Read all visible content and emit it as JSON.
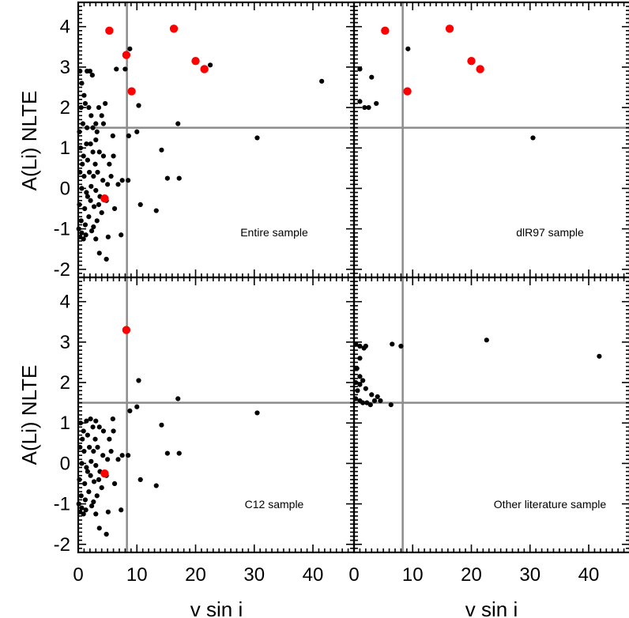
{
  "figure": {
    "ylabel": "A(Li) NLTE",
    "xlabel": "v sin i",
    "xlim": [
      0,
      47
    ],
    "ylim": [
      -2.2,
      4.6
    ],
    "x_ticks": [
      0,
      10,
      20,
      30,
      40
    ],
    "y_ticks": [
      -2,
      -1,
      0,
      1,
      2,
      3,
      4
    ],
    "reference_lines": {
      "vsini": 8.3,
      "ali": 1.5
    },
    "colors": {
      "black_points": "#000000",
      "red_points": "#ff0000",
      "reference_lines": "#8c8c8c"
    }
  },
  "chart_data": [
    {
      "type": "scatter",
      "panel": "top-left",
      "label": "Entire sample",
      "black": [
        [
          0.3,
          2.9
        ],
        [
          0.6,
          2.6
        ],
        [
          1.0,
          2.3
        ],
        [
          1.8,
          2.0
        ],
        [
          0.5,
          2.0
        ],
        [
          1.2,
          2.1
        ],
        [
          2.2,
          1.8
        ],
        [
          0.8,
          1.6
        ],
        [
          1.5,
          1.5
        ],
        [
          2.5,
          1.5
        ],
        [
          3.0,
          1.6
        ],
        [
          0.2,
          1.4
        ],
        [
          3.2,
          1.4
        ],
        [
          4.0,
          1.8
        ],
        [
          4.3,
          1.6
        ],
        [
          4.6,
          2.1
        ],
        [
          3.5,
          2.0
        ],
        [
          2.0,
          2.9
        ],
        [
          2.4,
          2.8
        ],
        [
          1.5,
          2.9
        ],
        [
          6.5,
          2.95
        ],
        [
          8.0,
          2.95
        ],
        [
          8.8,
          3.45
        ],
        [
          8.6,
          1.3
        ],
        [
          10.3,
          2.05
        ],
        [
          10.0,
          1.4
        ],
        [
          17.0,
          1.6
        ],
        [
          22.5,
          3.05
        ],
        [
          41.5,
          2.65
        ],
        [
          14.2,
          0.95
        ],
        [
          30.5,
          1.25
        ],
        [
          15.2,
          0.25
        ],
        [
          17.2,
          0.25
        ],
        [
          8.5,
          0.2
        ],
        [
          10.6,
          -0.4
        ],
        [
          13.3,
          -0.55
        ],
        [
          7.3,
          -1.15
        ],
        [
          5.9,
          1.3
        ],
        [
          6.0,
          0.8
        ],
        [
          5.3,
          0.6
        ],
        [
          3.0,
          1.2
        ],
        [
          2.1,
          1.1
        ],
        [
          1.4,
          1.1
        ],
        [
          0.4,
          1.0
        ],
        [
          0.9,
          0.8
        ],
        [
          1.6,
          0.7
        ],
        [
          2.5,
          0.9
        ],
        [
          3.6,
          0.9
        ],
        [
          4.3,
          0.8
        ],
        [
          0.3,
          0.4
        ],
        [
          1.0,
          0.3
        ],
        [
          1.9,
          0.4
        ],
        [
          2.6,
          0.3
        ],
        [
          3.3,
          0.4
        ],
        [
          4.2,
          0.2
        ],
        [
          5.0,
          0.1
        ],
        [
          6.8,
          0.1
        ],
        [
          7.5,
          0.2
        ],
        [
          0.6,
          0.0
        ],
        [
          1.4,
          -0.1
        ],
        [
          2.2,
          0.05
        ],
        [
          3.0,
          -0.05
        ],
        [
          3.7,
          -0.2
        ],
        [
          4.8,
          -0.3
        ],
        [
          6.2,
          -0.5
        ],
        [
          0.2,
          -0.4
        ],
        [
          1.1,
          -0.5
        ],
        [
          2.1,
          -0.3
        ],
        [
          2.7,
          -0.45
        ],
        [
          3.5,
          -0.4
        ],
        [
          4.0,
          -0.6
        ],
        [
          0.5,
          -0.8
        ],
        [
          1.2,
          -0.9
        ],
        [
          1.8,
          -0.7
        ],
        [
          2.6,
          -0.95
        ],
        [
          3.2,
          -0.8
        ],
        [
          0.1,
          -1.0
        ],
        [
          0.6,
          -1.1
        ],
        [
          1.3,
          -1.15
        ],
        [
          2.3,
          -1.05
        ],
        [
          3.0,
          -1.25
        ],
        [
          0.3,
          -1.2
        ],
        [
          0.9,
          -1.25
        ],
        [
          3.6,
          -1.6
        ],
        [
          4.8,
          -1.75
        ],
        [
          5.1,
          -1.2
        ],
        [
          1.6,
          -0.2
        ],
        [
          5.6,
          0.3
        ],
        [
          2.9,
          0.6
        ],
        [
          0.7,
          0.6
        ]
      ],
      "red": [
        [
          5.3,
          3.9
        ],
        [
          8.2,
          3.3
        ],
        [
          9.1,
          2.4
        ],
        [
          16.3,
          3.95
        ],
        [
          20.0,
          3.15
        ],
        [
          21.5,
          2.95
        ],
        [
          4.5,
          -0.25
        ]
      ]
    },
    {
      "type": "scatter",
      "panel": "top-right",
      "label": "dlR97 sample",
      "black": [
        [
          1.0,
          2.95
        ],
        [
          3.0,
          2.75
        ],
        [
          1.0,
          2.15
        ],
        [
          1.8,
          2.0
        ],
        [
          2.5,
          2.0
        ],
        [
          3.8,
          2.1
        ],
        [
          9.2,
          3.45
        ],
        [
          30.5,
          1.25
        ]
      ],
      "red": [
        [
          5.3,
          3.9
        ],
        [
          16.3,
          3.95
        ],
        [
          20.0,
          3.15
        ],
        [
          21.5,
          2.95
        ],
        [
          9.1,
          2.4
        ]
      ]
    },
    {
      "type": "scatter",
      "panel": "bottom-left",
      "label": "C12 sample",
      "black": [
        [
          8.8,
          1.3
        ],
        [
          10.3,
          2.05
        ],
        [
          10.0,
          1.4
        ],
        [
          17.0,
          1.6
        ],
        [
          14.2,
          0.95
        ],
        [
          30.5,
          1.25
        ],
        [
          15.2,
          0.25
        ],
        [
          17.2,
          0.25
        ],
        [
          8.5,
          0.2
        ],
        [
          10.6,
          -0.4
        ],
        [
          13.3,
          -0.55
        ],
        [
          7.3,
          -1.15
        ],
        [
          5.9,
          1.1
        ],
        [
          6.0,
          0.8
        ],
        [
          5.3,
          0.6
        ],
        [
          3.0,
          1.05
        ],
        [
          2.1,
          1.1
        ],
        [
          1.4,
          1.05
        ],
        [
          0.4,
          1.0
        ],
        [
          0.9,
          0.8
        ],
        [
          1.6,
          0.7
        ],
        [
          2.5,
          0.9
        ],
        [
          3.6,
          0.9
        ],
        [
          4.3,
          0.8
        ],
        [
          0.3,
          0.4
        ],
        [
          1.0,
          0.3
        ],
        [
          1.9,
          0.4
        ],
        [
          2.6,
          0.3
        ],
        [
          3.3,
          0.4
        ],
        [
          4.2,
          0.2
        ],
        [
          5.0,
          0.1
        ],
        [
          6.8,
          0.1
        ],
        [
          7.5,
          0.2
        ],
        [
          0.6,
          0.0
        ],
        [
          1.4,
          -0.1
        ],
        [
          2.2,
          0.05
        ],
        [
          3.0,
          -0.05
        ],
        [
          3.7,
          -0.2
        ],
        [
          4.8,
          -0.3
        ],
        [
          6.2,
          -0.5
        ],
        [
          0.2,
          -0.4
        ],
        [
          1.1,
          -0.5
        ],
        [
          2.1,
          -0.3
        ],
        [
          2.7,
          -0.45
        ],
        [
          3.5,
          -0.4
        ],
        [
          4.0,
          -0.6
        ],
        [
          0.5,
          -0.8
        ],
        [
          1.2,
          -0.9
        ],
        [
          1.8,
          -0.7
        ],
        [
          2.6,
          -0.95
        ],
        [
          3.2,
          -0.8
        ],
        [
          0.1,
          -1.0
        ],
        [
          0.6,
          -1.1
        ],
        [
          1.3,
          -1.15
        ],
        [
          2.3,
          -1.05
        ],
        [
          3.0,
          -1.25
        ],
        [
          0.3,
          -1.2
        ],
        [
          0.9,
          -1.25
        ],
        [
          3.6,
          -1.6
        ],
        [
          4.8,
          -1.75
        ],
        [
          5.1,
          -1.2
        ],
        [
          1.6,
          -0.2
        ],
        [
          5.6,
          0.3
        ],
        [
          2.9,
          0.6
        ],
        [
          0.7,
          0.6
        ]
      ],
      "red": [
        [
          8.2,
          3.3
        ],
        [
          4.5,
          -0.25
        ]
      ]
    },
    {
      "type": "scatter",
      "panel": "bottom-right",
      "label": "Other literature sample",
      "black": [
        [
          0.3,
          2.95
        ],
        [
          1.0,
          2.9
        ],
        [
          1.7,
          2.85
        ],
        [
          2.0,
          2.9
        ],
        [
          1.0,
          2.6
        ],
        [
          0.5,
          2.35
        ],
        [
          1.0,
          2.15
        ],
        [
          1.5,
          2.05
        ],
        [
          0.3,
          2.0
        ],
        [
          1.0,
          1.95
        ],
        [
          2.0,
          1.85
        ],
        [
          0.6,
          1.8
        ],
        [
          0.3,
          1.6
        ],
        [
          1.0,
          1.55
        ],
        [
          1.5,
          1.5
        ],
        [
          2.2,
          1.5
        ],
        [
          2.8,
          1.45
        ],
        [
          3.5,
          1.55
        ],
        [
          4.0,
          1.65
        ],
        [
          4.5,
          1.55
        ],
        [
          3.0,
          1.7
        ],
        [
          6.3,
          1.45
        ],
        [
          6.5,
          2.95
        ],
        [
          8.0,
          2.9
        ],
        [
          22.6,
          3.05
        ],
        [
          41.8,
          2.65
        ]
      ],
      "red": []
    }
  ]
}
